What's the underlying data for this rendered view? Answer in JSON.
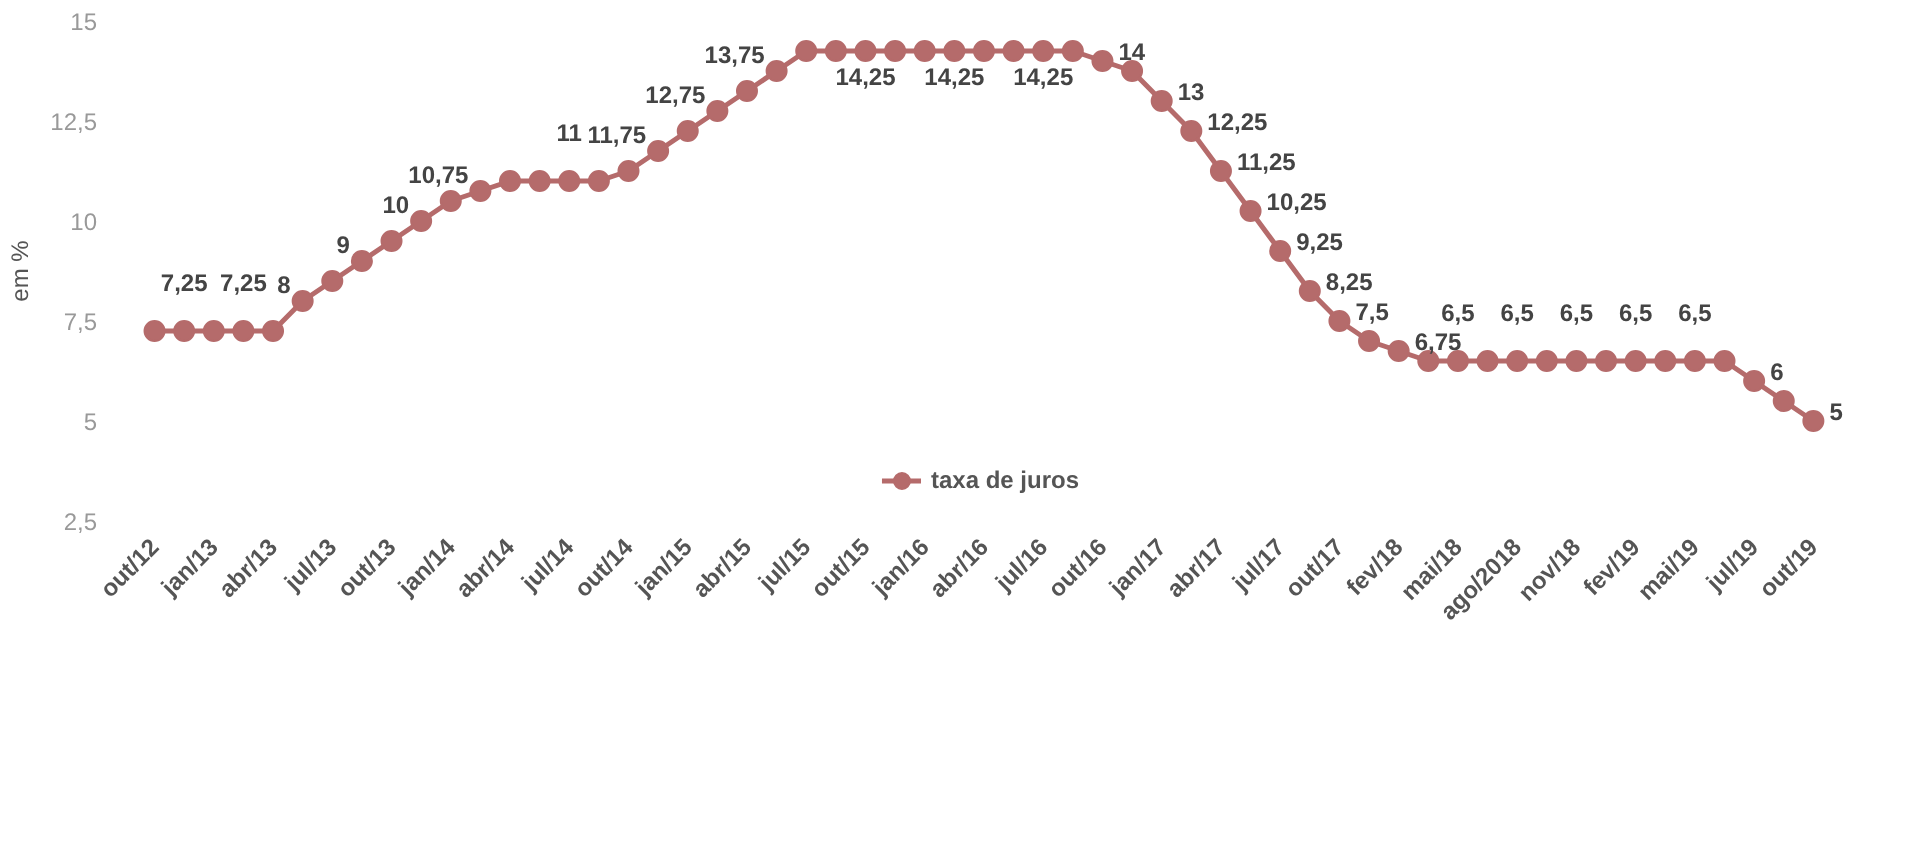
{
  "chart_data": {
    "type": "line",
    "ylabel": "em %",
    "categories": [
      "out/12",
      null,
      "jan/13",
      null,
      "abr/13",
      null,
      "jul/13",
      null,
      "out/13",
      null,
      "jan/14",
      null,
      "abr/14",
      null,
      "jul/14",
      null,
      "out/14",
      null,
      "jan/15",
      null,
      "abr/15",
      null,
      "jul/15",
      null,
      "out/15",
      null,
      "jan/16",
      null,
      "abr/16",
      null,
      "jul/16",
      null,
      "out/16",
      null,
      "jan/17",
      null,
      "abr/17",
      null,
      "jul/17",
      null,
      "out/17",
      null,
      "fev/18",
      null,
      "mai/18",
      null,
      "ago/2018",
      null,
      "nov/18",
      null,
      "fev/19",
      null,
      "mai/19",
      null,
      "jul/19",
      null,
      "out/19"
    ],
    "series": [
      {
        "name": "taxa de juros",
        "color": "#b56b6b",
        "values": [
          7.25,
          7.25,
          7.25,
          7.25,
          7.25,
          8,
          8.5,
          9,
          9.5,
          10,
          10.5,
          10.75,
          11,
          11,
          11,
          11,
          11.25,
          11.75,
          12.25,
          12.75,
          13.25,
          13.75,
          14.25,
          14.25,
          14.25,
          14.25,
          14.25,
          14.25,
          14.25,
          14.25,
          14.25,
          14.25,
          14,
          13.75,
          13,
          12.25,
          11.25,
          10.25,
          9.25,
          8.25,
          7.5,
          7,
          6.75,
          6.5,
          6.5,
          6.5,
          6.5,
          6.5,
          6.5,
          6.5,
          6.5,
          6.5,
          6.5,
          6.5,
          6,
          5.5,
          5
        ],
        "value_labels": [
          null,
          "7,25",
          null,
          "7,25",
          null,
          "8",
          null,
          "9",
          null,
          "10",
          null,
          "10,75",
          null,
          null,
          "11",
          null,
          null,
          "11,75",
          null,
          "12,75",
          null,
          "13,75",
          null,
          null,
          "14,25",
          null,
          null,
          "14,25",
          null,
          null,
          "14,25",
          null,
          "14",
          null,
          "13",
          "12,25",
          "11,25",
          "10,25",
          "9,25",
          "8,25",
          "7,5",
          null,
          "6,75",
          null,
          "6,5",
          null,
          "6,5",
          null,
          "6,5",
          null,
          "6,5",
          null,
          "6,5",
          null,
          "6",
          null,
          "5"
        ]
      }
    ],
    "ylim": [
      2.5,
      15
    ],
    "yticks": [
      {
        "value": 2.5,
        "label": "2,5"
      },
      5,
      {
        "value": 7.5,
        "label": "7,5"
      },
      10,
      {
        "value": 12.5,
        "label": "12,5"
      },
      15
    ],
    "grid": false,
    "legend": "bottom",
    "marker": "circle",
    "line_style": "solid"
  }
}
